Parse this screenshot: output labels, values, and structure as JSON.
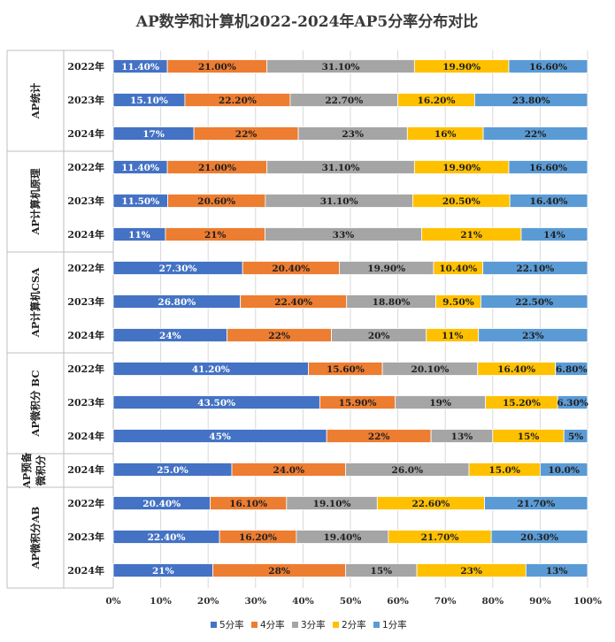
{
  "chart_data": {
    "type": "bar",
    "orientation": "horizontal-stacked-100",
    "title": "AP数学和计算机2022-2024年AP5分率分布对比",
    "xlim": [
      0,
      100
    ],
    "x_ticks": [
      "0%",
      "10%",
      "20%",
      "30%",
      "40%",
      "50%",
      "60%",
      "70%",
      "80%",
      "90%",
      "100%"
    ],
    "legend_position": "bottom",
    "series": [
      {
        "name": "5分率",
        "color": "#4472C4"
      },
      {
        "name": "4分率",
        "color": "#ED7D31"
      },
      {
        "name": "3分率",
        "color": "#A5A5A5"
      },
      {
        "name": "2分率",
        "color": "#FFC000"
      },
      {
        "name": "1分率",
        "color": "#5B9BD5"
      }
    ],
    "groups": [
      {
        "name": "AP统计",
        "rows": [
          {
            "year": "2022年",
            "values": [
              11.4,
              21.0,
              31.1,
              19.9,
              16.6
            ],
            "labels": [
              "11.40%",
              "21.00%",
              "31.10%",
              "19.90%",
              "16.60%"
            ]
          },
          {
            "year": "2023年",
            "values": [
              15.1,
              22.2,
              22.7,
              16.2,
              23.8
            ],
            "labels": [
              "15.10%",
              "22.20%",
              "22.70%",
              "16.20%",
              "23.80%"
            ]
          },
          {
            "year": "2024年",
            "values": [
              17,
              22,
              23,
              16,
              22
            ],
            "labels": [
              "17%",
              "22%",
              "23%",
              "16%",
              "22%"
            ]
          }
        ]
      },
      {
        "name": "AP计算机原理",
        "rows": [
          {
            "year": "2022年",
            "values": [
              11.4,
              21.0,
              31.1,
              19.9,
              16.6
            ],
            "labels": [
              "11.40%",
              "21.00%",
              "31.10%",
              "19.90%",
              "16.60%"
            ]
          },
          {
            "year": "2023年",
            "values": [
              11.5,
              20.6,
              31.1,
              20.5,
              16.4
            ],
            "labels": [
              "11.50%",
              "20.60%",
              "31.10%",
              "20.50%",
              "16.40%"
            ]
          },
          {
            "year": "2024年",
            "values": [
              11,
              21,
              33,
              21,
              14
            ],
            "labels": [
              "11%",
              "21%",
              "33%",
              "21%",
              "14%"
            ]
          }
        ]
      },
      {
        "name": "AP计算机CSA",
        "rows": [
          {
            "year": "2022年",
            "values": [
              27.3,
              20.4,
              19.9,
              10.4,
              22.1
            ],
            "labels": [
              "27.30%",
              "20.40%",
              "19.90%",
              "10.40%",
              "22.10%"
            ]
          },
          {
            "year": "2023年",
            "values": [
              26.8,
              22.4,
              18.8,
              9.5,
              22.5
            ],
            "labels": [
              "26.80%",
              "22.40%",
              "18.80%",
              "9.50%",
              "22.50%"
            ]
          },
          {
            "year": "2024年",
            "values": [
              24,
              22,
              20,
              11,
              23
            ],
            "labels": [
              "24%",
              "22%",
              "20%",
              "11%",
              "23%"
            ]
          }
        ]
      },
      {
        "name": "AP微积分 BC",
        "rows": [
          {
            "year": "2022年",
            "values": [
              41.2,
              15.6,
              20.1,
              16.4,
              6.8
            ],
            "labels": [
              "41.20%",
              "15.60%",
              "20.10%",
              "16.40%",
              "6.80%"
            ]
          },
          {
            "year": "2023年",
            "values": [
              43.5,
              15.9,
              19,
              15.2,
              6.3
            ],
            "labels": [
              "43.50%",
              "15.90%",
              "19%",
              "15.20%",
              "6.30%"
            ]
          },
          {
            "year": "2024年",
            "values": [
              45,
              22,
              13,
              15,
              5
            ],
            "labels": [
              "45%",
              "22%",
              "13%",
              "15%",
              "5%"
            ]
          }
        ]
      },
      {
        "name": "AP预备微积分",
        "rows": [
          {
            "year": "2024年",
            "values": [
              25.0,
              24.0,
              26.0,
              15.0,
              10.0
            ],
            "labels": [
              "25.0%",
              "24.0%",
              "26.0%",
              "15.0%",
              "10.0%"
            ]
          }
        ]
      },
      {
        "name": "AP微积分AB",
        "rows": [
          {
            "year": "2022年",
            "values": [
              20.4,
              16.1,
              19.1,
              22.6,
              21.7
            ],
            "labels": [
              "20.40%",
              "16.10%",
              "19.10%",
              "22.60%",
              "21.70%"
            ]
          },
          {
            "year": "2023年",
            "values": [
              22.4,
              16.2,
              19.4,
              21.7,
              20.3
            ],
            "labels": [
              "22.40%",
              "16.20%",
              "19.40%",
              "21.70%",
              "20.30%"
            ]
          },
          {
            "year": "2024年",
            "values": [
              21,
              28,
              15,
              23,
              13
            ],
            "labels": [
              "21%",
              "28%",
              "15%",
              "23%",
              "13%"
            ]
          }
        ]
      }
    ]
  }
}
